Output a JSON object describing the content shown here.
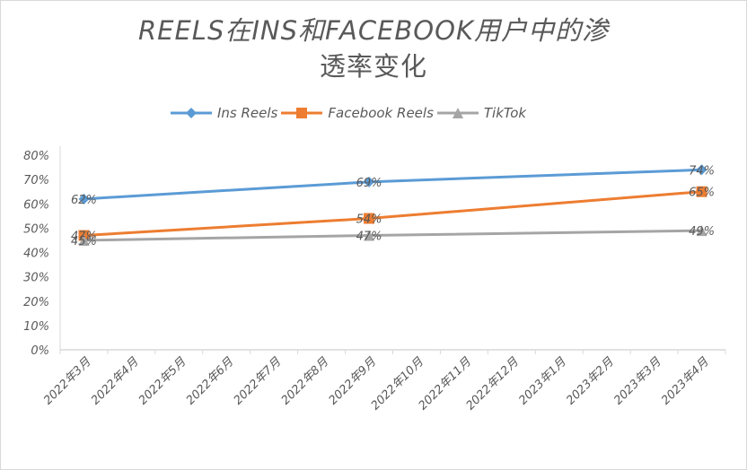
{
  "chart_data": {
    "type": "line",
    "title": "REELS在INS和FACEBOOK用户中的渗透率变化",
    "title_line1": "REELS在INS和FACEBOOK用户中的渗",
    "title_line2": "透率变化",
    "xlabel": "",
    "ylabel": "",
    "categories": [
      "2022年3月",
      "2022年4月",
      "2022年5月",
      "2022年6月",
      "2022年7月",
      "2022年8月",
      "2022年9月",
      "2022年10月",
      "2022年11月",
      "2022年12月",
      "2023年1月",
      "2023年2月",
      "2023年3月",
      "2023年4月"
    ],
    "data_points_x": [
      "2022年3月",
      "2022年9月",
      "2023年4月"
    ],
    "series": [
      {
        "name": "Ins Reels",
        "color": "#5b9bd5",
        "marker": "diamond",
        "values": [
          62,
          69,
          74
        ],
        "labels": [
          "62%",
          "69%",
          "74%"
        ]
      },
      {
        "name": "Facebook Reels",
        "color": "#ed7d31",
        "marker": "square",
        "values": [
          47,
          54,
          65
        ],
        "labels": [
          "47%",
          "54%",
          "65%"
        ]
      },
      {
        "name": "TikTok",
        "color": "#a5a5a5",
        "marker": "triangle",
        "values": [
          45,
          47,
          49
        ],
        "labels": [
          "45%",
          "47%",
          "49%"
        ]
      }
    ],
    "y_ticks": [
      "0%",
      "10%",
      "20%",
      "30%",
      "40%",
      "50%",
      "60%",
      "70%",
      "80%"
    ],
    "ylim": [
      0,
      80
    ],
    "grid": false,
    "legend_position": "top"
  }
}
